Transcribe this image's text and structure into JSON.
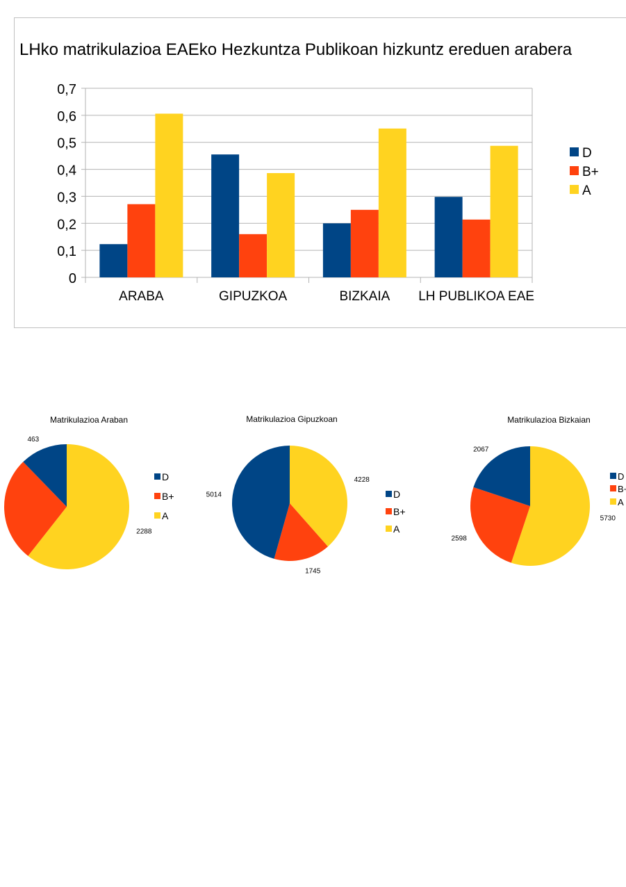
{
  "colors": {
    "D": "#004586",
    "B+": "#ff420e",
    "A": "#ffd320",
    "grid": "#b3b3b3",
    "frame": "#c0c0c0"
  },
  "chart_data": [
    {
      "type": "bar",
      "title": "LHko matrikulazioa EAEko Hezkuntza Publikoan hizkuntz ereduen arabera",
      "categories": [
        "ARABA",
        "GIPUZKOA",
        "BIZKAIA",
        "LH PUBLIKOA EAE"
      ],
      "series": [
        {
          "name": "D",
          "values": [
            0.123,
            0.455,
            0.2,
            0.298
          ]
        },
        {
          "name": "B+",
          "values": [
            0.271,
            0.16,
            0.25,
            0.214
          ]
        },
        {
          "name": "A",
          "values": [
            0.606,
            0.386,
            0.551,
            0.487
          ]
        }
      ],
      "ylim": [
        0,
        0.7
      ],
      "yticks": [
        "0",
        "0,1",
        "0,2",
        "0,3",
        "0,4",
        "0,5",
        "0,6",
        "0,7"
      ],
      "grid": true,
      "legend": "right",
      "xlabel": "",
      "ylabel": ""
    },
    {
      "type": "pie",
      "title": "Matrikulazioa Araban",
      "labels": [
        "D",
        "B+",
        "A"
      ],
      "values": [
        463,
        1024,
        2288
      ],
      "legend": "right"
    },
    {
      "type": "pie",
      "title": "Matrikulazioa Gipuzkoan",
      "labels": [
        "D",
        "B+",
        "A"
      ],
      "values": [
        5014,
        1745,
        4228
      ],
      "legend": "right"
    },
    {
      "type": "pie",
      "title": "Matrikulazioa Bizkaian",
      "labels": [
        "D",
        "B+",
        "A"
      ],
      "values": [
        2067,
        2598,
        5730
      ],
      "legend": "right"
    }
  ]
}
